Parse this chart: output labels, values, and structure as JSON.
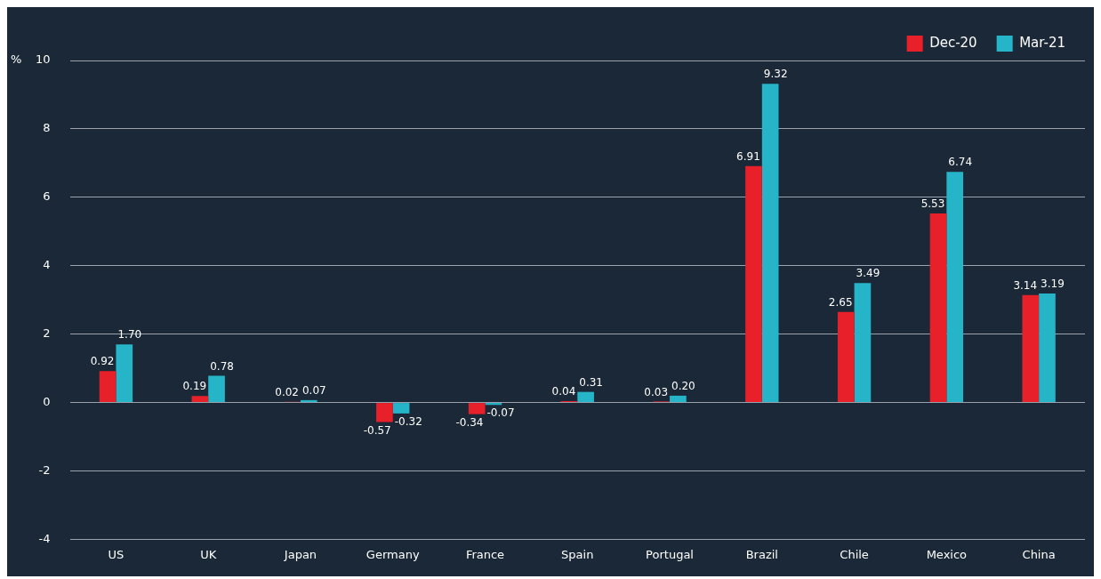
{
  "chart_data": {
    "type": "bar",
    "ylabel": "%",
    "categories": [
      "US",
      "UK",
      "Japan",
      "Germany",
      "France",
      "Spain",
      "Portugal",
      "Brazil",
      "Chile",
      "Mexico",
      "China"
    ],
    "series": [
      {
        "name": "Dec-20",
        "color": "#e8202a",
        "values": [
          0.92,
          0.19,
          0.02,
          -0.57,
          -0.34,
          0.04,
          0.03,
          6.91,
          2.65,
          5.53,
          3.14
        ],
        "value_labels": [
          "0.92",
          "0.19",
          "0.02",
          "-0.57",
          "-0.34",
          "0.04",
          "0.03",
          "6.91",
          "2.65",
          "5.53",
          "3.14"
        ]
      },
      {
        "name": "Mar-21",
        "color": "#26b5c8",
        "values": [
          1.7,
          0.78,
          0.07,
          -0.32,
          -0.07,
          0.31,
          0.2,
          9.32,
          3.49,
          6.74,
          3.19
        ],
        "value_labels": [
          "1.70",
          "0.78",
          "0.07",
          "-0.32",
          "-0.07",
          "0.31",
          "0.20",
          "9.32",
          "3.49",
          "6.74",
          "3.19"
        ]
      }
    ],
    "ylim": [
      -4,
      10
    ],
    "yticks": [
      -4,
      -2,
      0,
      2,
      4,
      6,
      8,
      10
    ],
    "grid": "y",
    "legend": "top right"
  }
}
